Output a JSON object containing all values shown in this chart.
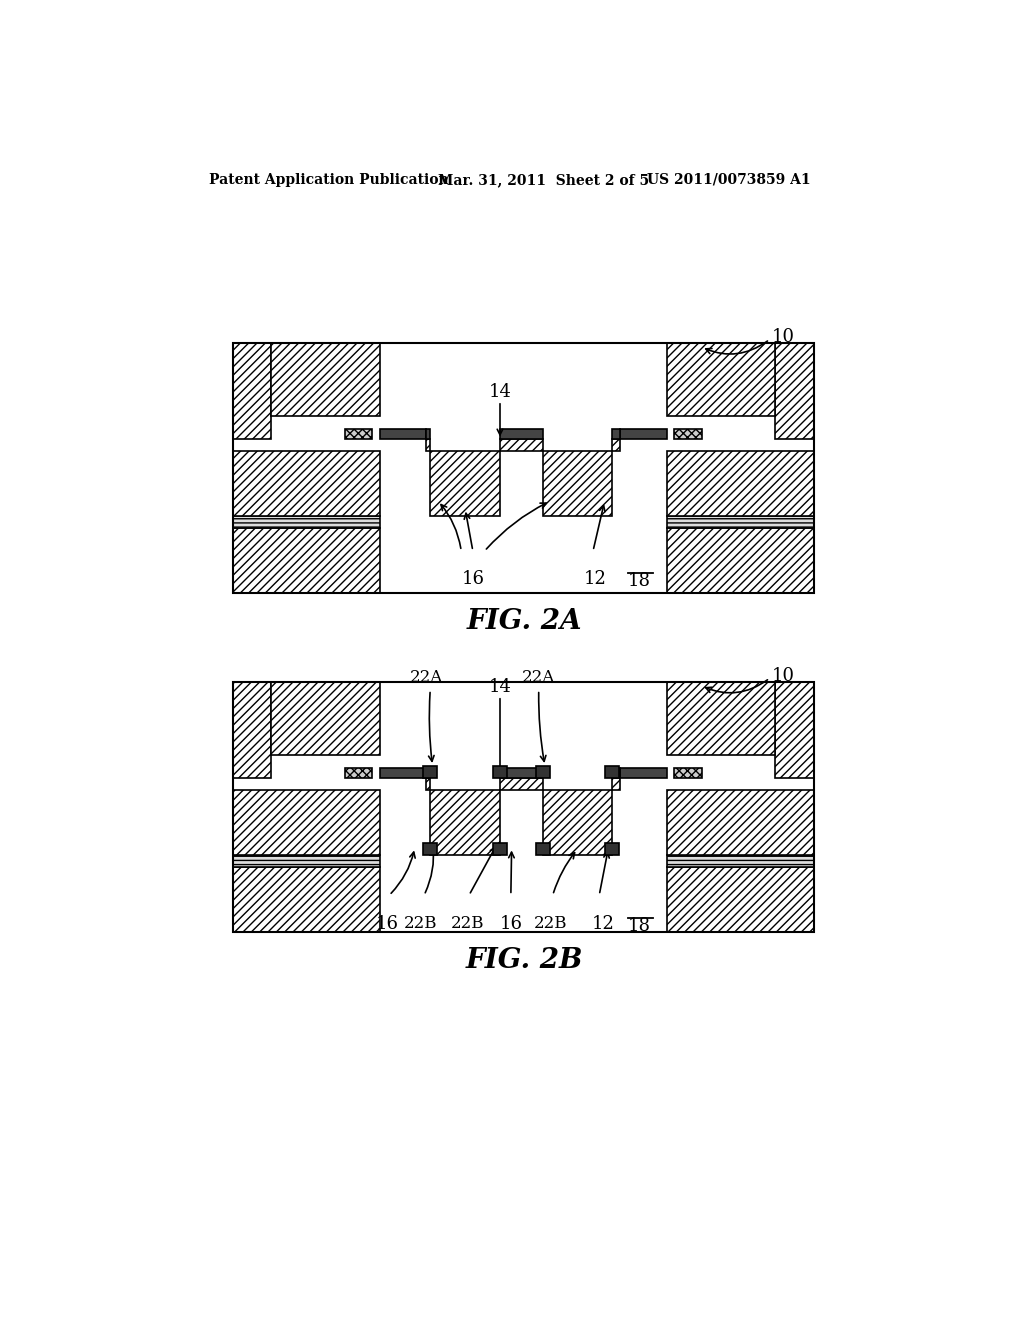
{
  "bg_color": "#ffffff",
  "lc": "#000000",
  "header1": "Patent Application Publication",
  "header2": "Mar. 31, 2011  Sheet 2 of 5",
  "header3": "US 2011/0073859 A1",
  "fig2a_label": "FIG. 2A",
  "fig2b_label": "FIG. 2B"
}
